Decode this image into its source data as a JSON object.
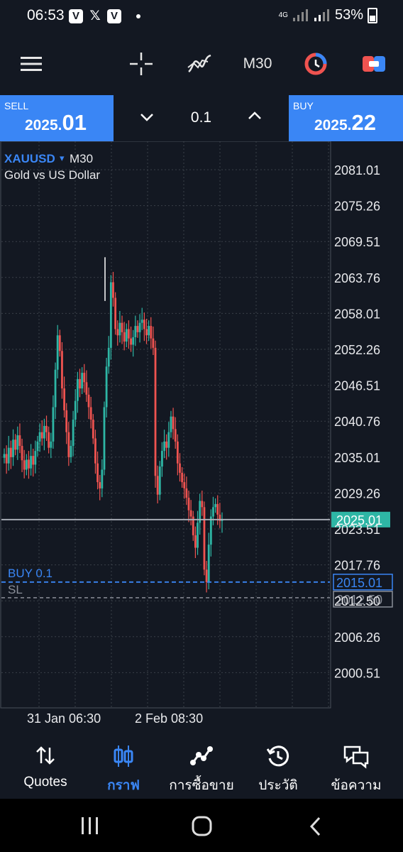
{
  "status_bar": {
    "time": "06:53",
    "app_icons": [
      "V",
      "𝕏",
      "V"
    ],
    "network": "4G",
    "battery": "53%"
  },
  "toolbar": {
    "timeframe": "M30",
    "icons": [
      "menu-icon",
      "crosshair-icon",
      "indicators-icon",
      "timeframe-label",
      "one-click-trading-icon",
      "trade-panel-icon"
    ]
  },
  "trade_panel": {
    "sell_label": "SELL",
    "sell_price_small": "2025.",
    "sell_price_big": "01",
    "lot": "0.1",
    "buy_label": "BUY",
    "buy_price_small": "2025.",
    "buy_price_big": "22"
  },
  "chart_header": {
    "symbol": "XAUUSD",
    "dropdown": "▾",
    "timeframe": "M30",
    "description": "Gold vs US Dollar"
  },
  "chart_data": {
    "type": "candlestick",
    "symbol": "XAUUSD",
    "timeframe": "M30",
    "y_ticks": [
      "2081.01",
      "2075.26",
      "2069.51",
      "2063.76",
      "2058.01",
      "2052.26",
      "2046.51",
      "2040.76",
      "2035.01",
      "2029.26",
      "2023.51",
      "2017.76",
      "2012.50",
      "2006.26",
      "2000.51"
    ],
    "ylim": [
      1996.0,
      2084.0
    ],
    "x_ticks": [
      "31 Jan 06:30",
      "2 Feb 08:30"
    ],
    "bid_line": {
      "label": "2025.01",
      "value": 2025.01,
      "color": "#b0b4bd"
    },
    "order_line": {
      "label": "BUY 0.1",
      "price_label": "2015.01",
      "value": 2015.01,
      "color": "#3a86f5"
    },
    "sl_line": {
      "label": "SL",
      "price_label": "2012.50",
      "value": 2012.5,
      "color": "#8a8f99"
    },
    "up_color": "#2eb6a5",
    "down_color": "#ef5350",
    "close_series": [
      2035.5,
      2034.0,
      2036.5,
      2035.0,
      2037.8,
      2036.2,
      2038.5,
      2036.8,
      2034.5,
      2033.0,
      2034.6,
      2033.2,
      2035.2,
      2033.8,
      2036.0,
      2037.5,
      2039.0,
      2038.0,
      2040.0,
      2039.0,
      2036.5,
      2037.5,
      2043.0,
      2049.0,
      2054.5,
      2052.0,
      2046.0,
      2042.5,
      2039.0,
      2035.0,
      2036.8,
      2041.0,
      2044.0,
      2047.5,
      2046.0,
      2048.5,
      2047.0,
      2045.0,
      2043.0,
      2041.0,
      2038.0,
      2034.0,
      2031.0,
      2030.0,
      2033.0,
      2043.0,
      2049.5,
      2052.5,
      2063.0,
      2060.5,
      2055.5,
      2054.5,
      2056.5,
      2055.0,
      2053.5,
      2055.5,
      2054.0,
      2053.0,
      2054.2,
      2056.0,
      2055.0,
      2056.5,
      2057.0,
      2055.5,
      2054.5,
      2056.0,
      2054.0,
      2052.5,
      2032.0,
      2029.0,
      2033.5,
      2036.0,
      2037.5,
      2036.5,
      2039.0,
      2041.5,
      2039.5,
      2037.5,
      2034.0,
      2032.5,
      2031.0,
      2030.0,
      2028.5,
      2026.5,
      2025.5,
      2022.5,
      2020.5,
      2024.5,
      2028.0,
      2027.0,
      2017.0,
      2015.0,
      2021.0,
      2025.5,
      2027.0,
      2027.5,
      2025.8,
      2024.8,
      2025.01
    ]
  },
  "bottom_nav": [
    {
      "label": "Quotes",
      "icon": "quotes-icon",
      "active": false
    },
    {
      "label": "กราฟ",
      "icon": "chart-icon",
      "active": true
    },
    {
      "label": "การซื้อขาย",
      "icon": "trade-icon",
      "active": false
    },
    {
      "label": "ประวัติ",
      "icon": "history-icon",
      "active": false
    },
    {
      "label": "ข้อความ",
      "icon": "messages-icon",
      "active": false
    }
  ]
}
